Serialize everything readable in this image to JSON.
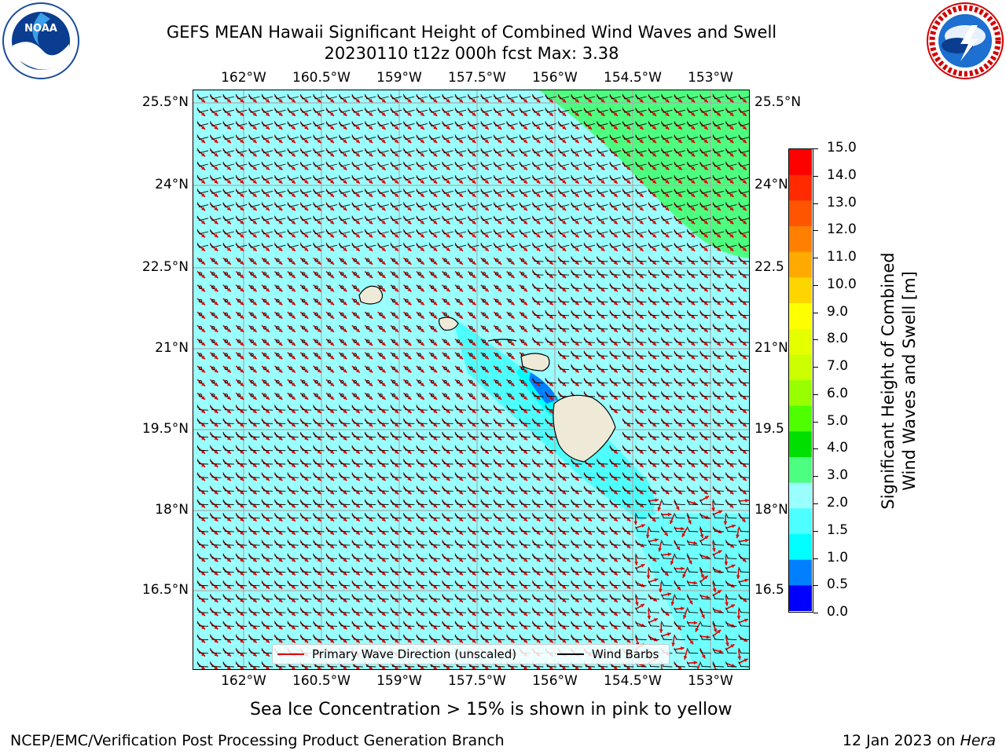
{
  "header": {
    "title_line1": "GEFS MEAN Hawaii Significant Height of Combined Wind Waves and Swell",
    "title_line2": "20230110 t12z 000h fcst   Max: 3.38"
  },
  "logos": {
    "left": {
      "name": "NOAA",
      "ring_text": "NATIONAL OCEANIC AND ATMOSPHERIC ADMINISTRATION · U.S. DEPARTMENT OF COMMERCE"
    },
    "right": {
      "name": "NATIONAL WEATHER SERVICE"
    }
  },
  "map": {
    "lon_labels": [
      "162°W",
      "160.5°W",
      "159°W",
      "157.5°W",
      "156°W",
      "154.5°W",
      "153°W"
    ],
    "lat_labels_left": [
      "25.5°N",
      "24°N",
      "22.5°N",
      "21°N",
      "19.5°N",
      "18°N",
      "16.5°N"
    ],
    "lat_labels_right": [
      "25.5°N",
      "24°N",
      "22.5",
      "21°N",
      "19.5",
      "18°N",
      "16.5"
    ],
    "colors": {
      "ocean": "#99ffff",
      "ocean_mid": "#4dffff",
      "ocean_low": "#00ffff",
      "ocean_deep": "#0080ff",
      "ocean_min": "#0000ff",
      "high_green": "#4dff80",
      "land": "#efe9d8",
      "wave_arrow": "#e00000",
      "barb": "#000000",
      "grid": "#aaaaaa"
    },
    "legend": {
      "wave_label": "Primary Wave Direction (unscaled)",
      "barb_label": "Wind Barbs"
    }
  },
  "colorbar": {
    "label_line1": "Significant Height of Combined",
    "label_line2": "Wind Waves and Swell [m]",
    "ticks": [
      "15.0",
      "14.0",
      "13.0",
      "12.0",
      "11.0",
      "10.0",
      "9.0",
      "8.0",
      "7.0",
      "6.0",
      "5.0",
      "4.0",
      "3.0",
      "2.0",
      "1.5",
      "1.0",
      "0.5",
      "0.0"
    ],
    "colors_top_to_bottom": [
      "#ff0000",
      "#ff2a00",
      "#ff5500",
      "#ff8000",
      "#ffaa00",
      "#ffd500",
      "#ffff00",
      "#e6ff00",
      "#ccff00",
      "#99ff00",
      "#4dff00",
      "#00e000",
      "#4dff80",
      "#99ffff",
      "#4dffff",
      "#00ffff",
      "#0080ff",
      "#0000ff"
    ]
  },
  "caption": "Sea Ice Concentration > 15% is shown in pink to yellow",
  "footer": {
    "left": "NCEP/EMC/Verification Post Processing Product Generation Branch",
    "right_prefix": "12 Jan 2023 on ",
    "right_host": "Hera"
  }
}
